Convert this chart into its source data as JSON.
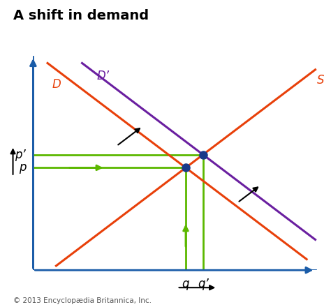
{
  "title": "A shift in demand",
  "title_fontsize": 14,
  "title_fontweight": "bold",
  "copyright": "© 2013 Encyclopædia Britannica, Inc.",
  "background_color": "#ffffff",
  "axis_color": "#1a5ca8",
  "xlim": [
    0,
    10
  ],
  "ylim": [
    0,
    10
  ],
  "supply_color": "#e8400a",
  "demand_color": "#e8400a",
  "demand2_color": "#6a1fa0",
  "green_color": "#5cb800",
  "dot_color": "#1a3a8a",
  "arrow_color": "#000000",
  "supply_line": {
    "x": [
      0.8,
      9.8
    ],
    "y": [
      0.2,
      9.2
    ]
  },
  "demand1_line": {
    "x": [
      0.5,
      9.5
    ],
    "y": [
      9.5,
      0.5
    ]
  },
  "demand2_line": {
    "x": [
      1.7,
      9.8
    ],
    "y": [
      9.5,
      1.4
    ]
  },
  "eq1_x": 5.0,
  "eq2_x": 6.35,
  "p_label": "p",
  "p2_label": "p’",
  "q_label": "q",
  "q2_label": "q’",
  "D_label": "D",
  "D2_label": "D’",
  "S_label": "S",
  "label_fontsize": 12,
  "label_fontstyle": "italic"
}
